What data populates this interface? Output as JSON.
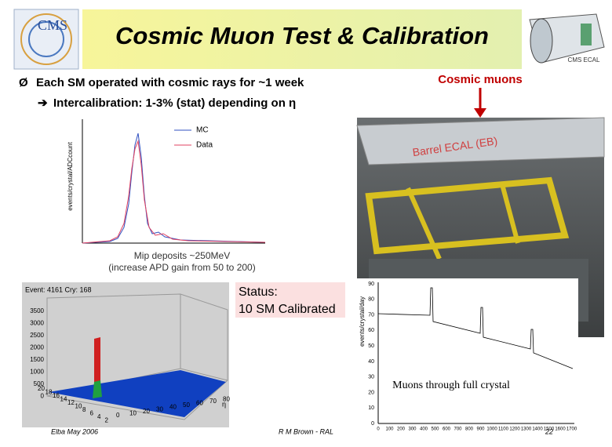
{
  "header": {
    "title": "Cosmic Muon Test & Calibration",
    "logo": "CMS",
    "detector_label": "CMS ECAL"
  },
  "bullets": [
    "Each SM operated with cosmic rays for ~1 week",
    "Intercalibration: 1-3% (stat) depending on η"
  ],
  "mip_plot": {
    "legend": [
      "MC",
      "Data"
    ],
    "y_label": "events/crystal/ADCcount",
    "caption": [
      "Mip deposits ~250MeV",
      "(increase APD gain from 50 to 200)"
    ]
  },
  "photo": {
    "label": "Cosmic muons",
    "overlay": "Barrel ECAL (EB)"
  },
  "event_plot": {
    "title": "Event: 4161  Cry: 168",
    "yticks": [
      "3500",
      "3000",
      "2500",
      "2000",
      "1500",
      "1000",
      "500",
      "0"
    ],
    "phi_ticks": [
      "20",
      "18",
      "16",
      "14",
      "12",
      "10",
      "8",
      "6",
      "4",
      "2"
    ],
    "eta_ticks": [
      "0",
      "10",
      "20",
      "30",
      "40",
      "50",
      "60",
      "70",
      "80"
    ],
    "eta_label": "η"
  },
  "status": {
    "lines": [
      "Status:",
      "10 SM Calibrated"
    ]
  },
  "rate_plot": {
    "y_label": "events/crystal/day",
    "yticks": [
      "90",
      "80",
      "70",
      "60",
      "50",
      "40",
      "30",
      "20",
      "10",
      "0"
    ],
    "xticks": [
      "0",
      "100",
      "200",
      "300",
      "400",
      "500",
      "600",
      "700",
      "800",
      "900",
      "1000",
      "1100",
      "1200",
      "1300",
      "1400",
      "1500",
      "1600",
      "1700"
    ],
    "caption": "Muons through full crystal"
  },
  "footer": {
    "left": "Elba May 2006",
    "center": "R M Brown - RAL",
    "page": "22"
  }
}
